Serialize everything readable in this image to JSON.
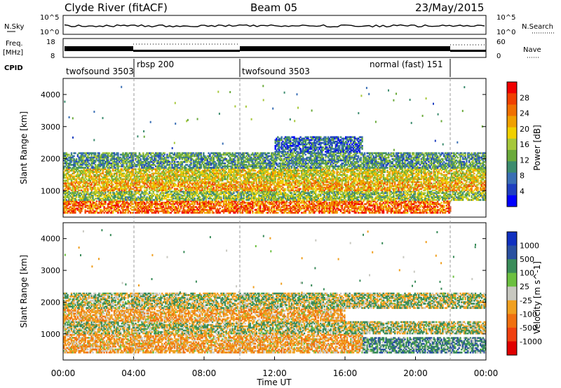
{
  "header": {
    "station": "Clyde River (fitACF)",
    "beam": "Beam 05",
    "date": "23/May/2015"
  },
  "top_panels": {
    "nsky_label": "N.Sky",
    "nsearch_label": "N.Search",
    "freq_label": "Freq.",
    "freq_unit": "[MHz]",
    "nave_label": "Nave",
    "cpid_label": "CPID",
    "nsky_ticks": [
      "10^5",
      "10^0"
    ],
    "nsearch_ticks": [
      "10^5",
      "10^0"
    ],
    "freq_ticks": [
      "18",
      "8"
    ],
    "nave_ticks": [
      "60",
      "0"
    ]
  },
  "cpid_segments": [
    {
      "label": "twofsound 3503",
      "start_h": 0,
      "end_h": 4
    },
    {
      "label": "rbsp 200",
      "start_h": 4,
      "end_h": 10
    },
    {
      "label": "twofsound 3503",
      "start_h": 10,
      "end_h": 22
    },
    {
      "label": "normal (fast) 151",
      "start_h": 22,
      "end_h": 24
    }
  ],
  "colors": {
    "power": [
      "#0000ff",
      "#1f3fc0",
      "#3a6fb5",
      "#3c8c6e",
      "#6aaa3a",
      "#a6c83a",
      "#f0d000",
      "#f0a000",
      "#f07000",
      "#f04000",
      "#f00000"
    ],
    "velocity": [
      "#1030c0",
      "#2a50a0",
      "#3a8c5a",
      "#6cc040",
      "#c8c8c0",
      "#c8c8c0",
      "#f0a020",
      "#f07010",
      "#f04010",
      "#e00000"
    ]
  },
  "chart_data": [
    {
      "type": "heatmap",
      "name": "power",
      "ylabel": "Slant Range [km]",
      "xlim": [
        0,
        24
      ],
      "ylim": [
        180,
        4500
      ],
      "yticks": [
        1000,
        2000,
        3000,
        4000
      ],
      "colorbar": {
        "label": "Power [dB]",
        "range": [
          0,
          32
        ],
        "ticks": [
          "4",
          "8",
          "12",
          "16",
          "20",
          "24",
          "28"
        ]
      },
      "bands": [
        {
          "range_km": [
            300,
            700
          ],
          "level_dB": 26,
          "x_range_h": [
            0,
            22
          ]
        },
        {
          "range_km": [
            700,
            1000
          ],
          "level_dB": 14,
          "x_range_h": [
            0,
            24
          ]
        },
        {
          "range_km": [
            1000,
            1300
          ],
          "level_dB": 22,
          "x_range_h": [
            0,
            24
          ]
        },
        {
          "range_km": [
            1300,
            1700
          ],
          "level_dB": 18,
          "x_range_h": [
            0,
            24
          ]
        },
        {
          "range_km": [
            1700,
            2200
          ],
          "level_dB": 10,
          "x_range_h": [
            0,
            24
          ]
        },
        {
          "range_km": [
            2200,
            2700
          ],
          "level_dB": 6,
          "x_range_h": [
            12,
            17
          ]
        }
      ]
    },
    {
      "type": "heatmap",
      "name": "velocity",
      "xlabel": "Time UT",
      "ylabel": "Slant Range [km]",
      "xlim": [
        0,
        24
      ],
      "ylim": [
        180,
        4500
      ],
      "xticks": [
        "00:00",
        "04:00",
        "08:00",
        "12:00",
        "16:00",
        "20:00",
        "00:00"
      ],
      "yticks": [
        1000,
        2000,
        3000,
        4000
      ],
      "colorbar": {
        "label": "Velocity [m s^-1]",
        "ticks": [
          "1000",
          "500",
          "100",
          "25",
          "-25",
          "-100",
          "-500",
          "-1000"
        ]
      },
      "bands": [
        {
          "range_km": [
            400,
            1000
          ],
          "level_ms": -200,
          "x_range_h": [
            0,
            17
          ]
        },
        {
          "range_km": [
            400,
            900
          ],
          "level_ms": 200,
          "x_range_h": [
            17,
            24
          ]
        },
        {
          "range_km": [
            1000,
            1400
          ],
          "level_ms": 0,
          "x_range_h": [
            0,
            24
          ]
        },
        {
          "range_km": [
            1400,
            1800
          ],
          "level_ms": -200,
          "x_range_h": [
            0,
            16
          ]
        },
        {
          "range_km": [
            1800,
            2300
          ],
          "level_ms": 0,
          "x_range_h": [
            0,
            24
          ]
        }
      ]
    }
  ]
}
